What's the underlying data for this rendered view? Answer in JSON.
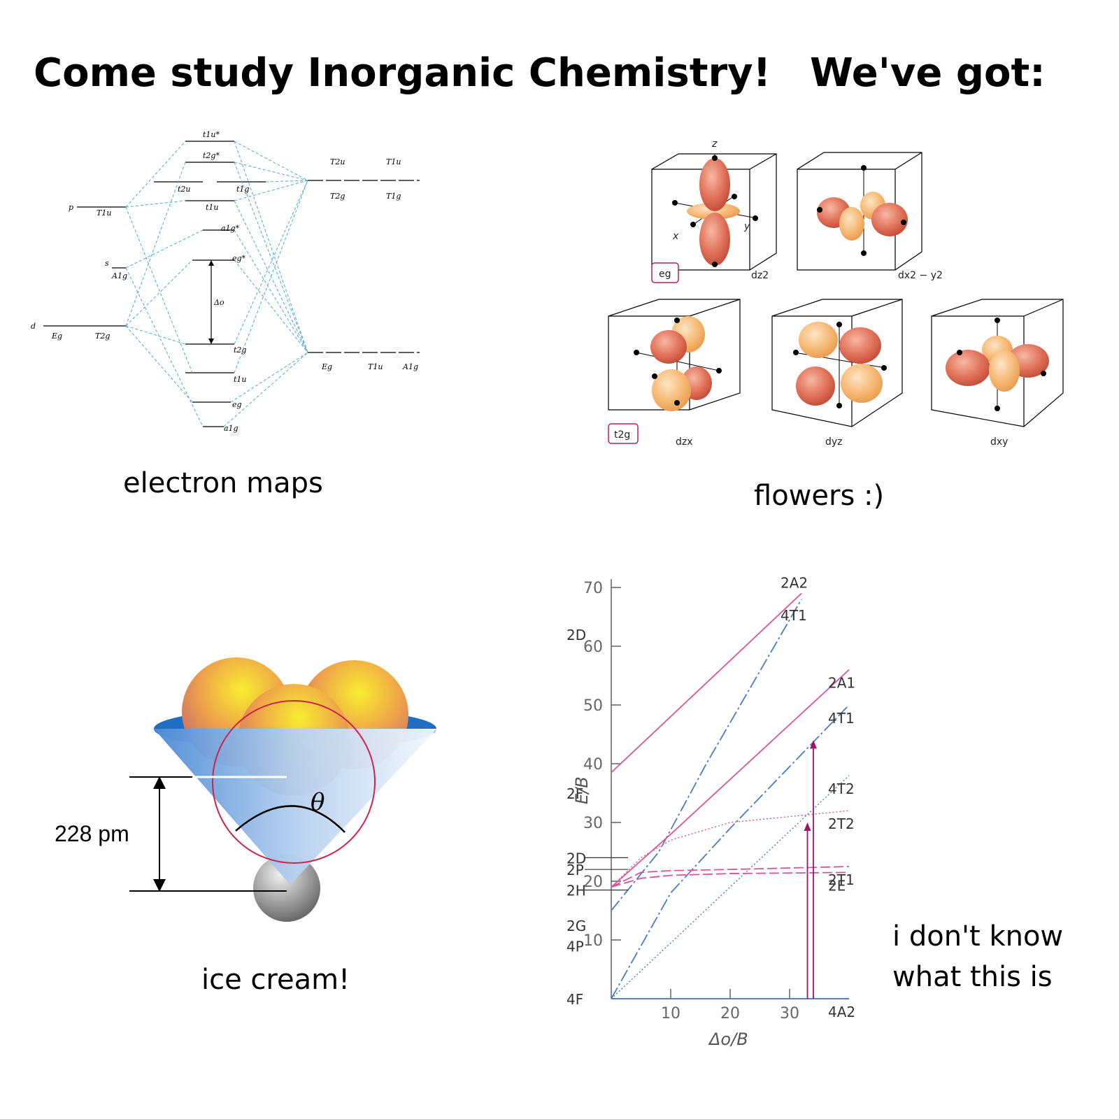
{
  "header": {
    "title_left": "Come study Inorganic Chemistry!",
    "title_right": "We've got:"
  },
  "panels": [
    {
      "caption": "electron maps",
      "labels": {
        "p": "p",
        "s": "s",
        "d": "d",
        "t1u_star": "t1u*",
        "t2g_star": "t2g*",
        "t2u": "t2u",
        "t1g": "t1g",
        "t1u": "t1u",
        "a1g_star": "a1g*",
        "eg_star": "eg*",
        "delta": "Δo",
        "t2g": "t2g",
        "t1u_low": "t1u",
        "eg": "eg",
        "a1g": "a1g",
        "T1u_p": "T1u",
        "A1g_s": "A1g",
        "Eg_d": "Eg",
        "T2g_d": "T2g",
        "T2u_r": "T2u",
        "T1u_r": "T1u",
        "T2g_r": "T2g",
        "T1g_r": "T1g",
        "Eg_r": "Eg",
        "T1u_r2": "T1u",
        "A1g_r": "A1g"
      }
    },
    {
      "caption": "flowers :)",
      "labels": {
        "z": "z",
        "x": "x",
        "y": "y",
        "eg": "eg",
        "t2g": "t2g",
        "dz2": "dz2",
        "dx2y2": "dx2 − y2",
        "dzx": "dzx",
        "dyz": "dyz",
        "dxy": "dxy"
      }
    },
    {
      "caption": "ice cream!",
      "labels": {
        "distance": "228 pm",
        "angle": "θ"
      }
    },
    {
      "caption": "i don't know what this is",
      "caption_line1": "i don't know",
      "caption_line2": "what this is"
    }
  ],
  "chart_data": {
    "type": "line",
    "title": "",
    "xlabel": "Δo/B",
    "ylabel": "E/B",
    "xlim": [
      0,
      40
    ],
    "ylim": [
      0,
      70
    ],
    "x_ticks": [
      10,
      20,
      30
    ],
    "y_ticks": [
      10,
      20,
      30,
      40,
      50,
      60,
      70
    ],
    "grid": false,
    "free_ion_terms": [
      "4F",
      "4P",
      "2G",
      "2H",
      "2P",
      "2D",
      "2F",
      "2D"
    ],
    "series": [
      {
        "name": "2A2",
        "color": "#d9559a",
        "style": "solid",
        "x": [
          0,
          32
        ],
        "y": [
          38.5,
          69
        ]
      },
      {
        "name": "4T1",
        "color": "#4a7cc0",
        "style": "dashdot",
        "x": [
          0,
          8,
          16,
          32
        ],
        "y": [
          15,
          25,
          40,
          68
        ]
      },
      {
        "name": "2A1",
        "color": "#d9559a",
        "style": "solid",
        "x": [
          0,
          10,
          40
        ],
        "y": [
          19,
          28,
          56
        ]
      },
      {
        "name": "4T1",
        "color": "#4a7cc0",
        "style": "dashdot",
        "x": [
          0,
          10,
          20,
          40
        ],
        "y": [
          0,
          18,
          29,
          50
        ]
      },
      {
        "name": "4T2",
        "color": "#4a7cc0",
        "style": "dotted",
        "x": [
          0,
          40
        ],
        "y": [
          0,
          38
        ]
      },
      {
        "name": "2T2",
        "color": "#d9559a",
        "style": "dotted",
        "x": [
          0,
          5,
          10,
          20,
          40
        ],
        "y": [
          19,
          24,
          27,
          30,
          32
        ]
      },
      {
        "name": "2T1",
        "color": "#d9559a",
        "style": "dashed",
        "x": [
          0,
          5,
          10,
          20,
          40
        ],
        "y": [
          19,
          21.5,
          21.8,
          22,
          22.5
        ]
      },
      {
        "name": "2E",
        "color": "#d9559a",
        "style": "dashed",
        "x": [
          0,
          5,
          10,
          20,
          40
        ],
        "y": [
          19,
          20.5,
          21,
          21.3,
          21.5
        ]
      },
      {
        "name": "4A2",
        "color": "#4a7cc0",
        "style": "solid",
        "x": [
          0,
          40
        ],
        "y": [
          0,
          0
        ]
      }
    ],
    "transitions": [
      {
        "x": 33,
        "y_from": 0,
        "y_to": 30
      },
      {
        "x": 34,
        "y_from": 0,
        "y_to": 44
      }
    ]
  },
  "colors": {
    "blue_dash": "#4aa8d8",
    "pink": "#d9559a",
    "blue_line": "#4a7cc0",
    "orbital_dark": "#d9604a",
    "orbital_light": "#f5b96a",
    "cone_blue": "#1e6fc4",
    "magenta_box": "#b3245f",
    "arrow": "#a3106a"
  }
}
